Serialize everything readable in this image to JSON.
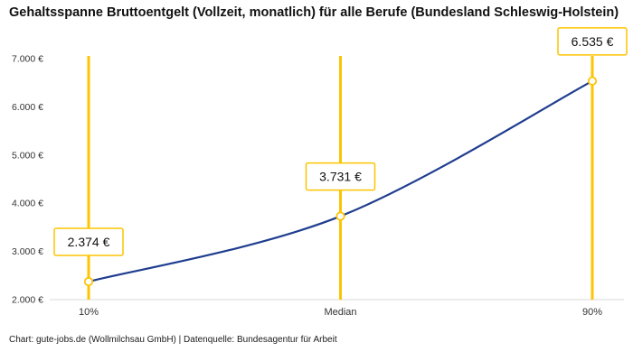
{
  "header": {
    "title": "Gehaltsspanne Bruttoentgelt (Vollzeit, monatlich) für alle Berufe (Bundesland Schleswig-Holstein)"
  },
  "footer": {
    "credit": "Chart: gute-jobs.de (Wollmilchsau GmbH) | Datenquelle: Bundesagentur für Arbeit"
  },
  "chart_data": {
    "type": "line",
    "categories": [
      "10%",
      "Median",
      "90%"
    ],
    "values": [
      2374,
      3731,
      6535
    ],
    "value_labels": [
      "2.374 €",
      "3.731 €",
      "6.535 €"
    ],
    "ylim": [
      2000,
      7000
    ],
    "ytick_step": 1000,
    "ytick_labels": [
      "2.000 €",
      "3.000 €",
      "4.000 €",
      "5.000 €",
      "6.000 €",
      "7.000 €"
    ],
    "grid": false,
    "legend": "none",
    "colors": {
      "line": "#1f3d8f",
      "accent_yellow": "#fdc400",
      "marker_fill": "#ffffff",
      "label_bg": "#ffffff",
      "label_text": "#111111",
      "axis_text": "#333333",
      "axis_line": "#d9d9d9"
    }
  }
}
